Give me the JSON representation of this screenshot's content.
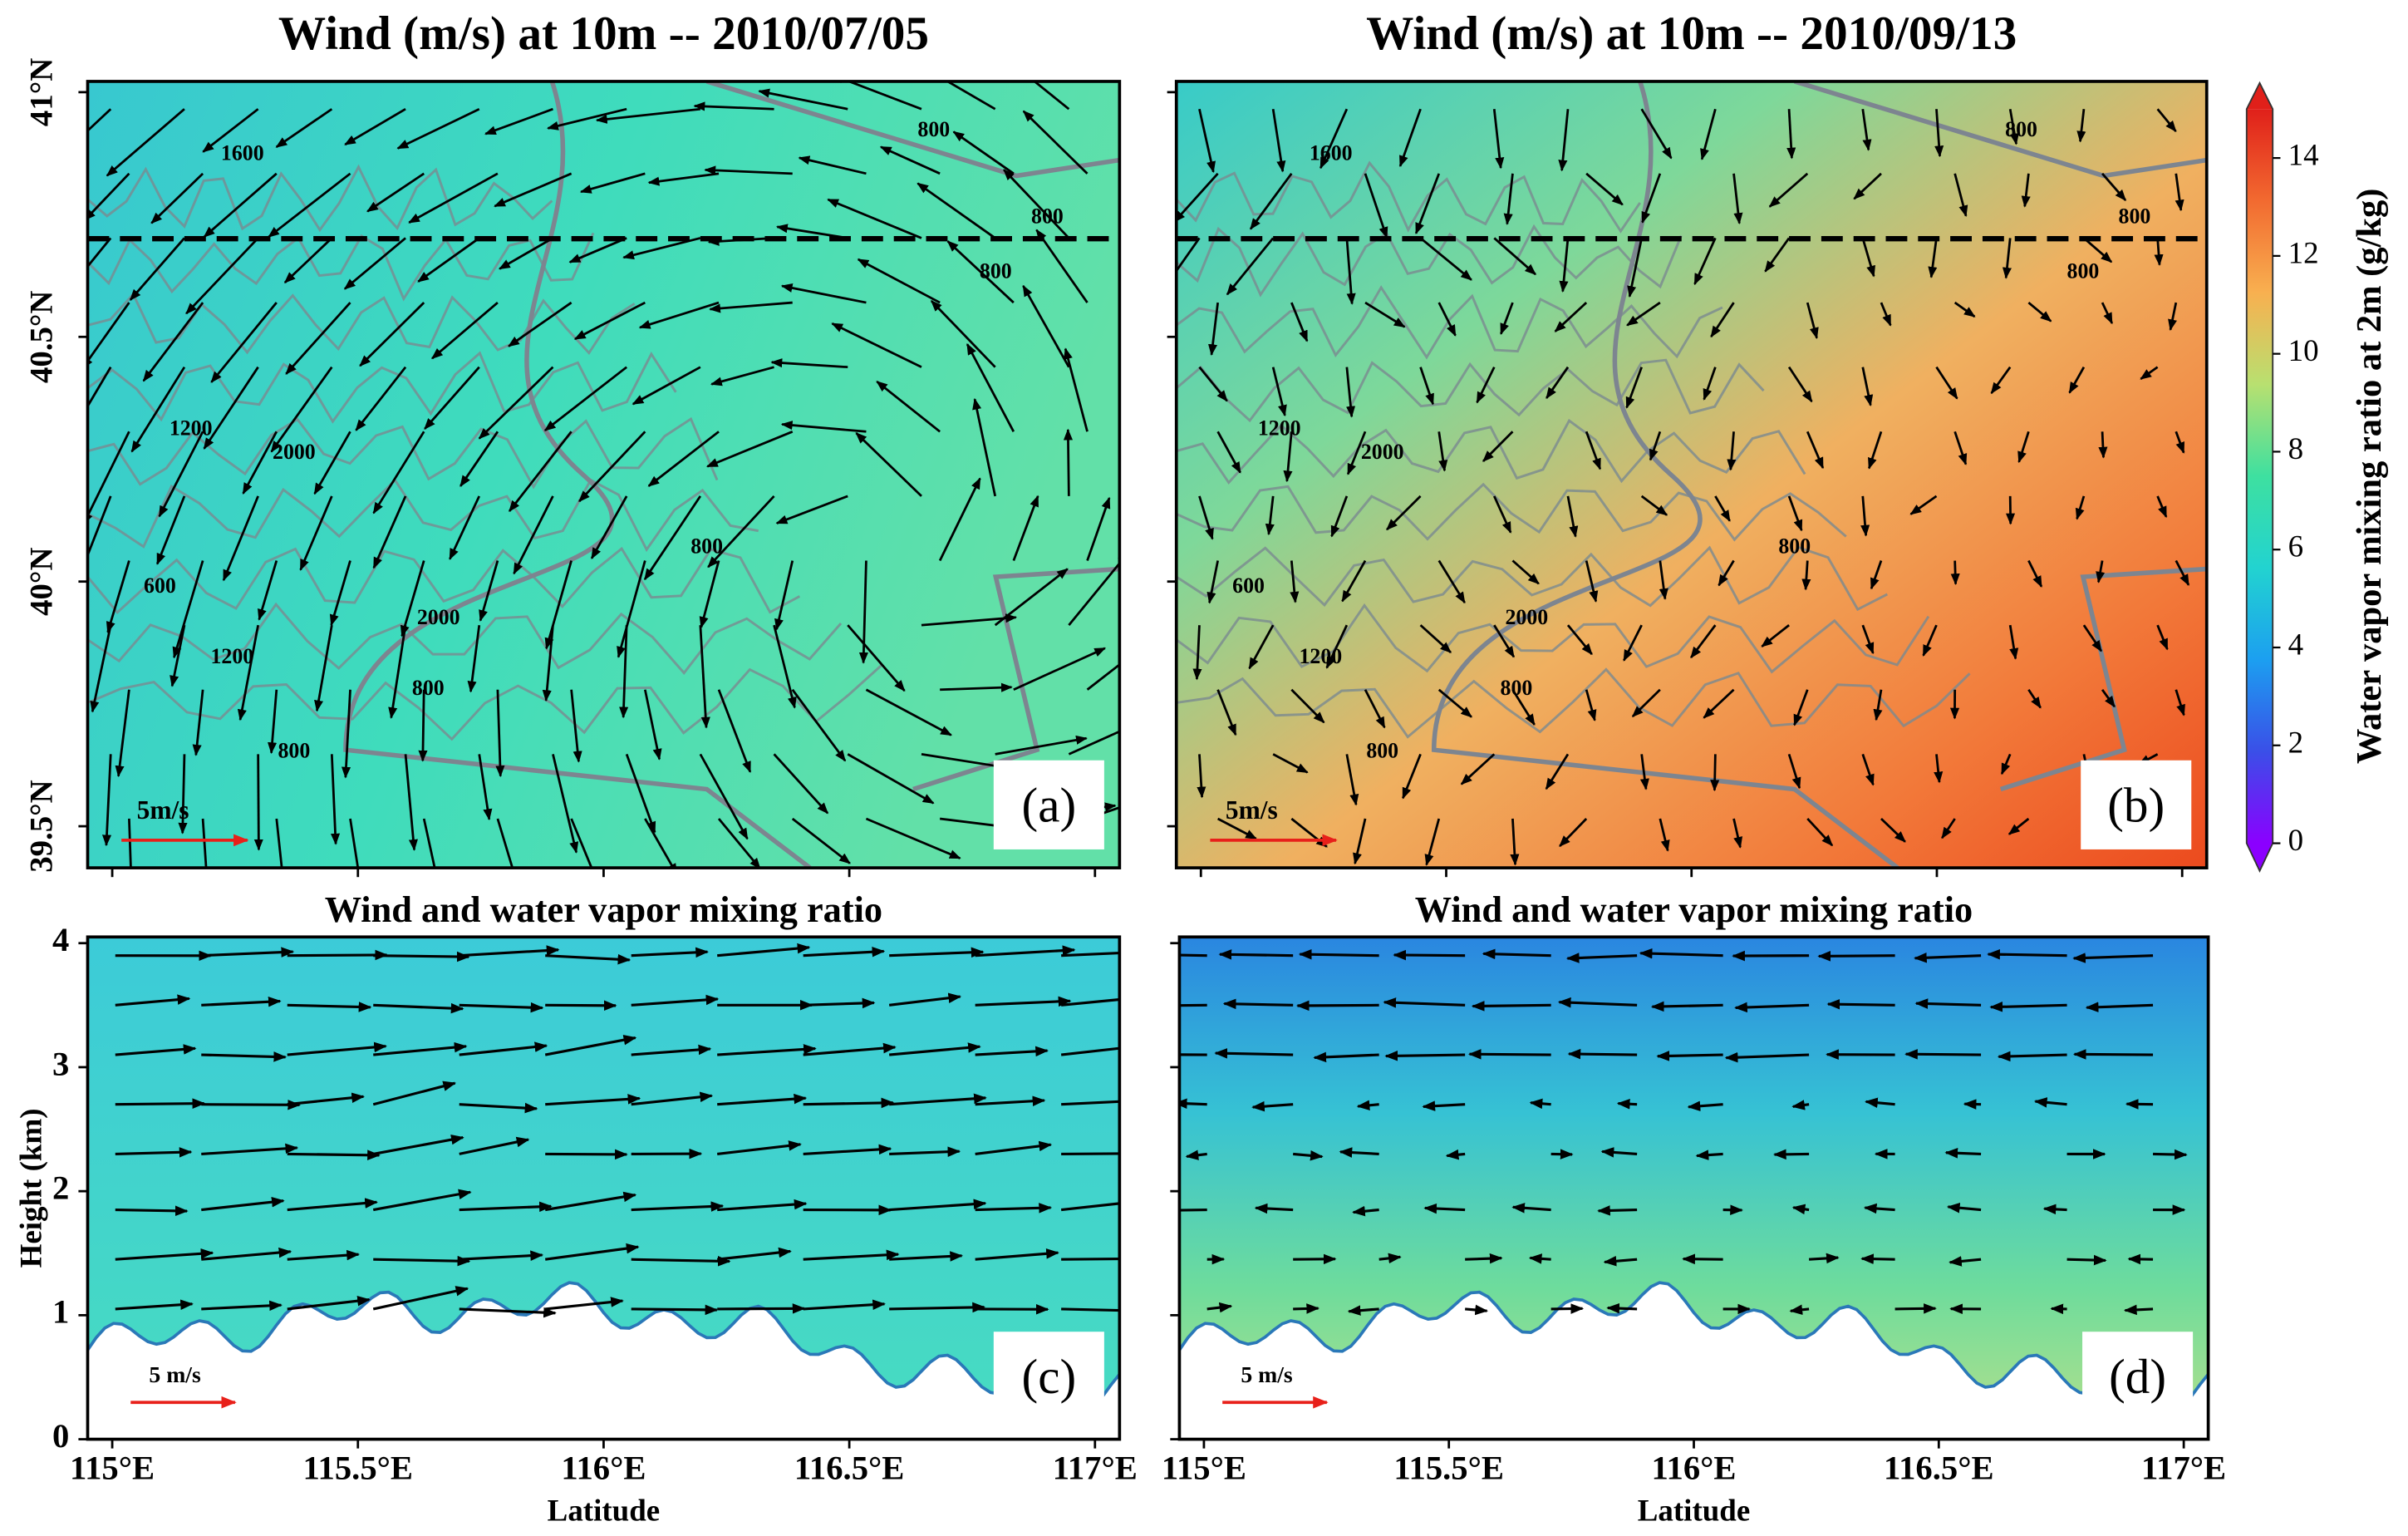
{
  "chart_data": [
    {
      "type": "map",
      "title": "Wind (m/s) at 10m -- 2010/07/05",
      "xlim": [
        114.95,
        117.05
      ],
      "xticks": [
        115,
        115.5,
        116,
        116.5,
        117
      ],
      "ylim": [
        39.415,
        41.022
      ],
      "yticks": [
        {
          "value": 39.5,
          "label": "39.5°N"
        },
        {
          "value": 40,
          "label": "40°N"
        },
        {
          "value": 40.5,
          "label": "40.5°N"
        },
        {
          "value": 41,
          "label": "41°N"
        }
      ],
      "panel_label": "(a)",
      "scale_label": "5m/s",
      "contour_labels": [
        "1600",
        "2000",
        "1200",
        "800",
        "600",
        "1200",
        "2000",
        "800",
        "800",
        "800",
        "800",
        "800"
      ]
    },
    {
      "type": "map",
      "title": "Wind (m/s) at 10m -- 2010/09/13",
      "xlim": [
        114.95,
        117.05
      ],
      "xticks": [
        115,
        115.5,
        116,
        116.5,
        117
      ],
      "ylim": [
        39.415,
        41.022
      ],
      "yticks": [
        39.5,
        40,
        40.5,
        41
      ],
      "show_ytick_labels": false,
      "panel_label": "(b)",
      "scale_label": "5m/s",
      "contour_labels": [
        "1600",
        "2000",
        "1200",
        "800",
        "600",
        "1200",
        "2000",
        "800",
        "800",
        "800",
        "800",
        "800"
      ]
    },
    {
      "type": "colorbar",
      "label": "Water vapor mixing ratio at 2m (g/kg)",
      "ylim": [
        0,
        15
      ],
      "yticks": [
        0,
        2,
        4,
        6,
        8,
        10,
        12,
        14
      ],
      "colors": [
        "#8b00ff",
        "#3a4fe8",
        "#1c9ff0",
        "#22d3d0",
        "#3ee0a0",
        "#b8e070",
        "#f8b050",
        "#f26a30",
        "#e0201a"
      ]
    },
    {
      "type": "section",
      "title": "Wind and water vapor mixing ratio",
      "ylabel": "Height (km)",
      "xlabel": "Latitude",
      "xlim": [
        114.95,
        117.05
      ],
      "xticks": [
        {
          "value": 115,
          "label": "115°E"
        },
        {
          "value": 115.5,
          "label": "115.5°E"
        },
        {
          "value": 116,
          "label": "116°E"
        },
        {
          "value": 116.5,
          "label": "116.5°E"
        },
        {
          "value": 117,
          "label": "117°E"
        }
      ],
      "ylim": [
        0,
        4.05
      ],
      "yticks": [
        0,
        1,
        2,
        3,
        4
      ],
      "panel_label": "(c)",
      "scale_label": "5 m/s"
    },
    {
      "type": "section",
      "title": "Wind and water vapor mixing ratio",
      "xlabel": "Latitude",
      "xlim": [
        114.95,
        117.05
      ],
      "xticks": [
        {
          "value": 115,
          "label": "115°E"
        },
        {
          "value": 115.5,
          "label": "115.5°E"
        },
        {
          "value": 116,
          "label": "116°E"
        },
        {
          "value": 116.5,
          "label": "116.5°E"
        },
        {
          "value": 117,
          "label": "117°E"
        }
      ],
      "ylim": [
        0,
        4.05
      ],
      "yticks": [
        0,
        1,
        2,
        3,
        4
      ],
      "show_ytick_labels": false,
      "panel_label": "(d)",
      "scale_label": "5 m/s"
    }
  ]
}
